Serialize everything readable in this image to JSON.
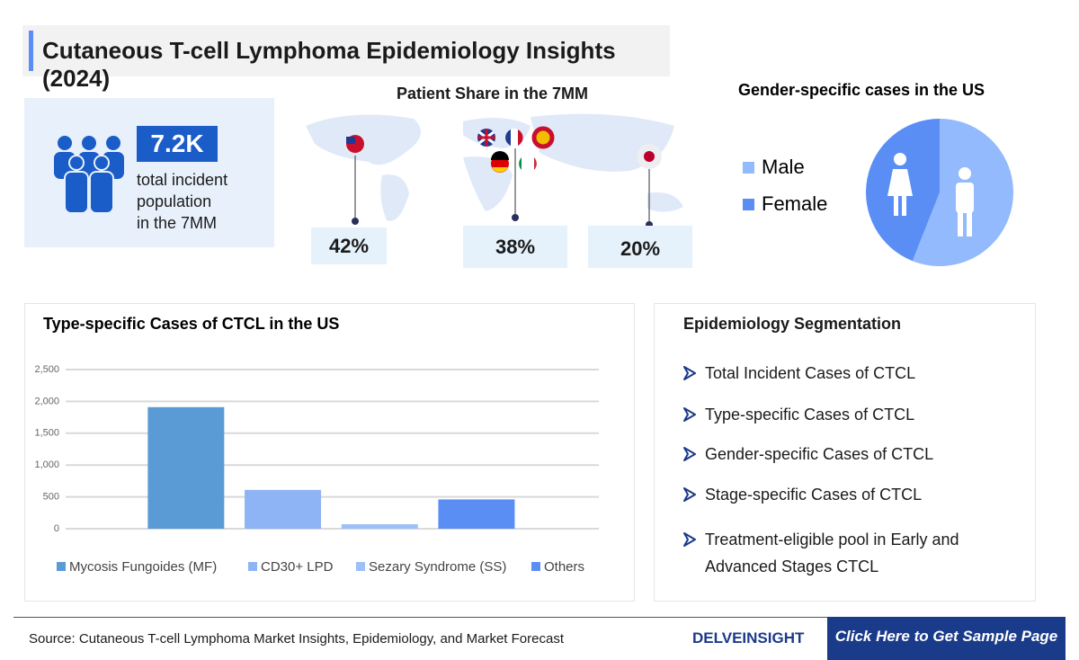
{
  "header": {
    "title": "Cutaneous T-cell Lymphoma Epidemiology Insights (2024)"
  },
  "incident": {
    "value": "7.2K",
    "lines": [
      "total incident",
      "population",
      "in the 7MM"
    ]
  },
  "patient_share": {
    "title": "Patient Share in the 7MM",
    "labels": [
      "42%",
      "38%",
      "20%"
    ]
  },
  "chart_data": [
    {
      "type": "bar",
      "title": "Type-specific Cases of CTCL in the US",
      "categories": [
        "Mycosis Fungoides (MF)",
        "CD30+ LPD",
        "Sezary Syndrome (SS)",
        "Others"
      ],
      "values": [
        1910,
        610,
        70,
        460
      ],
      "colors": [
        "#5b9bd5",
        "#8fb4f5",
        "#9cc0f8",
        "#5b8ef5"
      ],
      "ylim": [
        0,
        2500
      ],
      "yticks": [
        0,
        500,
        {
          "value": 1000,
          "label": "1,000"
        },
        {
          "value": 1500,
          "label": "1,500"
        },
        {
          "value": 2000,
          "label": "2,000"
        },
        {
          "value": 2500,
          "label": "2,500"
        }
      ],
      "grid": true,
      "legend": "bottom"
    },
    {
      "type": "pie",
      "title": "Gender-specific cases in the US",
      "categories": [
        "Male",
        "Female"
      ],
      "values": [
        56,
        44
      ],
      "colors": [
        "#92bafc",
        "#5b8ef5"
      ],
      "legend": "left"
    }
  ],
  "segmentation": {
    "title": "Epidemiology Segmentation",
    "items": [
      "Total Incident Cases of CTCL",
      "Type-specific Cases of CTCL",
      "Gender-specific Cases of CTCL",
      "Stage-specific Cases of CTCL",
      "Treatment-eligible pool in Early and Advanced Stages CTCL"
    ]
  },
  "footer": {
    "source": "Source: Cutaneous T-cell Lymphoma Market Insights, Epidemiology, and Market Forecast",
    "logo": "DELVEINSIGHT",
    "cta": "Click Here to Get Sample Page"
  }
}
